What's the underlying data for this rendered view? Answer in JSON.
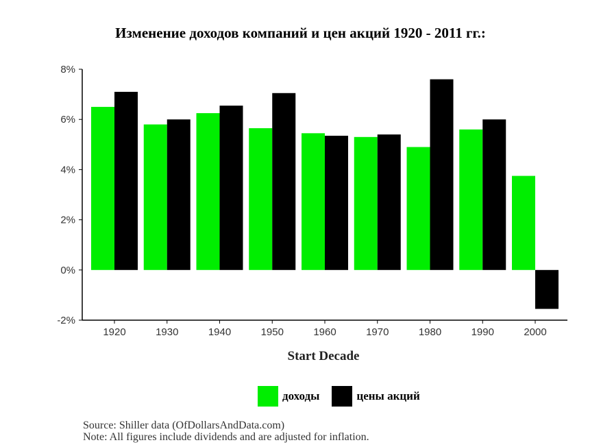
{
  "chart_data": {
    "type": "bar",
    "title": "Изменение доходов компаний и цен акций 1920 - 2011 гг.:",
    "xlabel": "Start Decade",
    "ylabel": "",
    "categories": [
      "1920",
      "1930",
      "1940",
      "1950",
      "1960",
      "1970",
      "1980",
      "1990",
      "2000"
    ],
    "series": [
      {
        "name": "доходы",
        "color": "#00ee00",
        "values": [
          6.5,
          5.8,
          6.25,
          5.65,
          5.45,
          5.3,
          4.9,
          5.6,
          3.75
        ]
      },
      {
        "name": "цены акций",
        "color": "#000000",
        "values": [
          7.1,
          6.0,
          6.55,
          7.05,
          5.35,
          5.4,
          7.6,
          6.0,
          -1.55
        ]
      }
    ],
    "ylim": [
      -2,
      8
    ],
    "yticks": [
      "-2%",
      "0%",
      "2%",
      "4%",
      "6%",
      "8%"
    ],
    "ytick_values": [
      -2,
      0,
      2,
      4,
      6,
      8
    ],
    "grid": false,
    "legend_position": "bottom-center"
  },
  "notes": {
    "source": "Source: Shiller data (OfDollarsAndData.com)",
    "note": "Note: All figures include dividends and are adjusted for inflation."
  }
}
